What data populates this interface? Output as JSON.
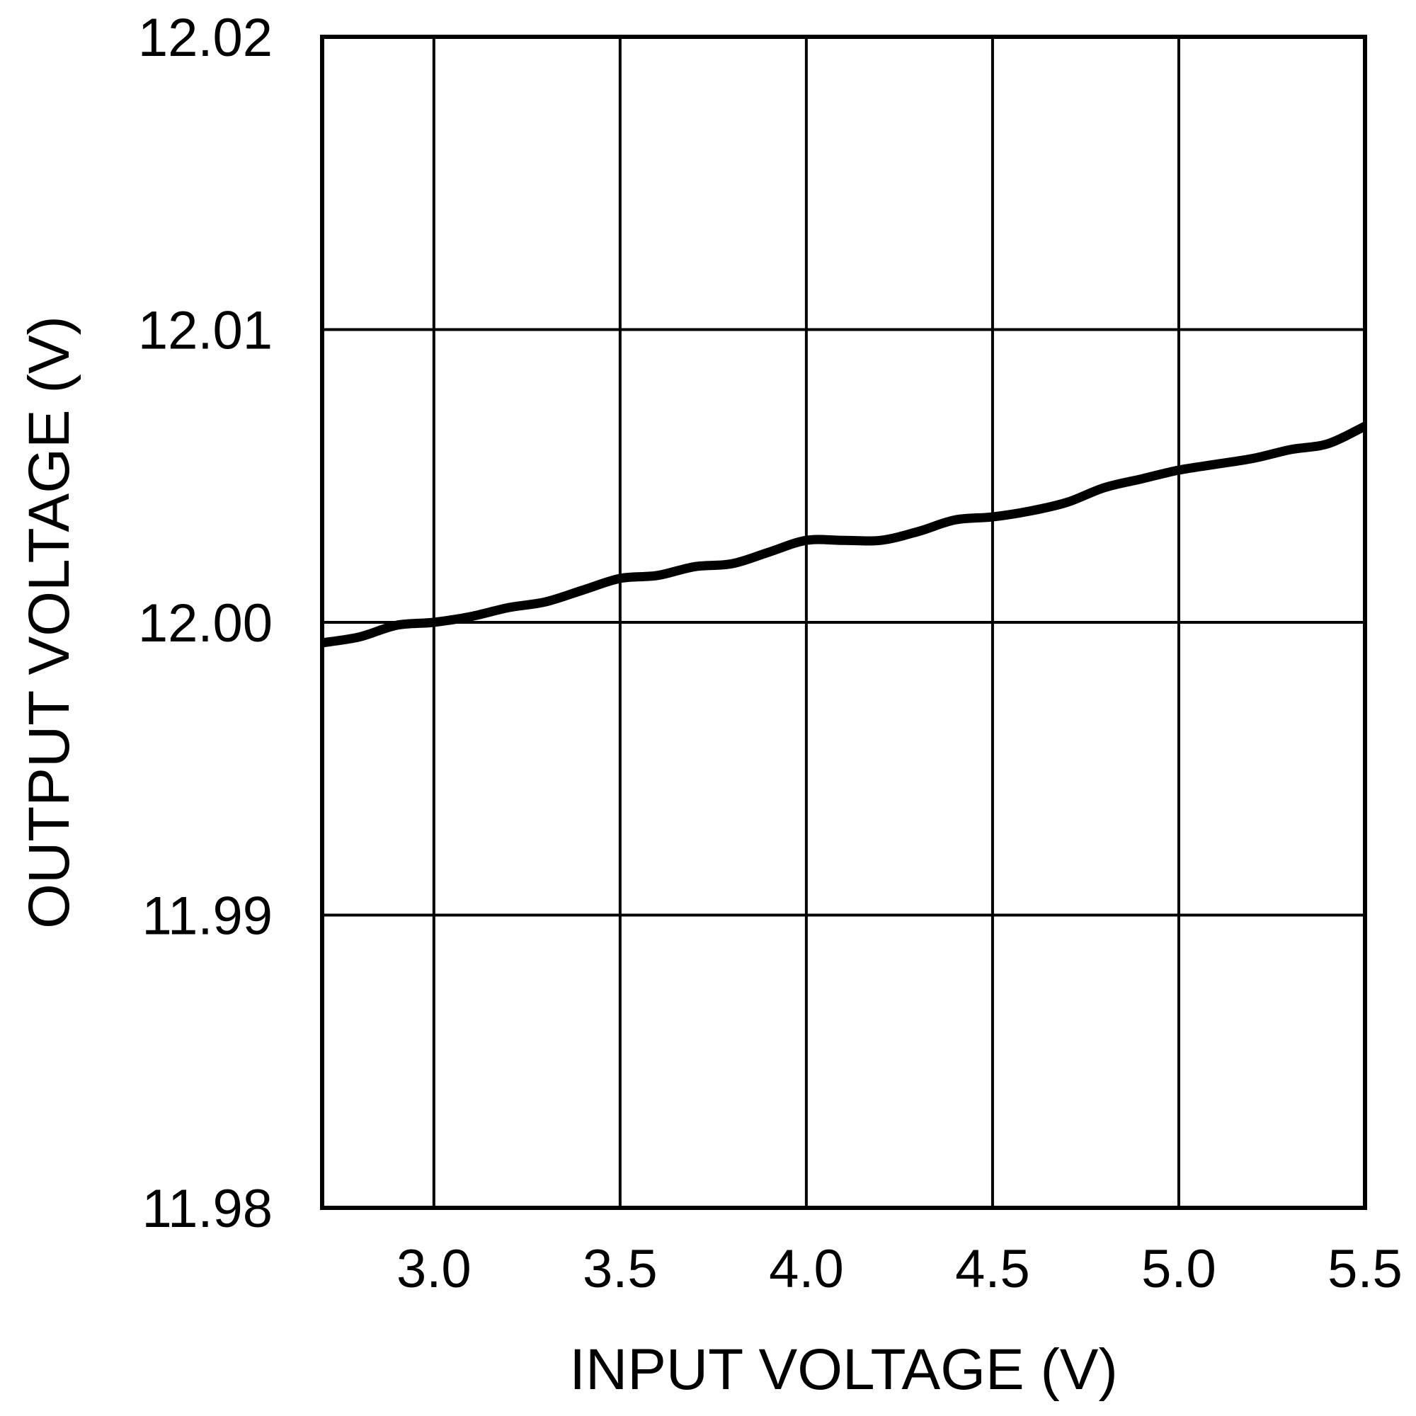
{
  "chart_data": {
    "type": "line",
    "title": "",
    "xlabel": "INPUT VOLTAGE (V)",
    "ylabel": "OUTPUT VOLTAGE (V)",
    "xlim": [
      2.7,
      5.5
    ],
    "ylim": [
      11.98,
      12.02
    ],
    "grid": true,
    "x_ticks": [
      3.0,
      3.5,
      4.0,
      4.5,
      5.0,
      5.5
    ],
    "x_tick_labels": [
      "3.0",
      "3.5",
      "4.0",
      "4.5",
      "5.0",
      "5.5"
    ],
    "y_ticks": [
      11.98,
      11.99,
      12.0,
      12.01,
      12.02
    ],
    "y_tick_labels": [
      "11.98",
      "11.99",
      "12.00",
      "12.01",
      "12.02"
    ],
    "series": [
      {
        "color": "#000000",
        "x": [
          2.7,
          2.8,
          2.9,
          3.0,
          3.1,
          3.2,
          3.3,
          3.4,
          3.5,
          3.6,
          3.7,
          3.8,
          3.9,
          4.0,
          4.1,
          4.2,
          4.3,
          4.4,
          4.5,
          4.6,
          4.7,
          4.8,
          4.9,
          5.0,
          5.1,
          5.2,
          5.3,
          5.4,
          5.5
        ],
        "y": [
          11.9993,
          11.9995,
          11.9999,
          12.0,
          12.0002,
          12.0005,
          12.0007,
          12.0011,
          12.0015,
          12.0016,
          12.0019,
          12.002,
          12.0024,
          12.0028,
          12.0028,
          12.0028,
          12.0031,
          12.0035,
          12.0036,
          12.0038,
          12.0041,
          12.0046,
          12.0049,
          12.0052,
          12.0054,
          12.0056,
          12.0059,
          12.0061,
          12.0067
        ]
      }
    ]
  }
}
